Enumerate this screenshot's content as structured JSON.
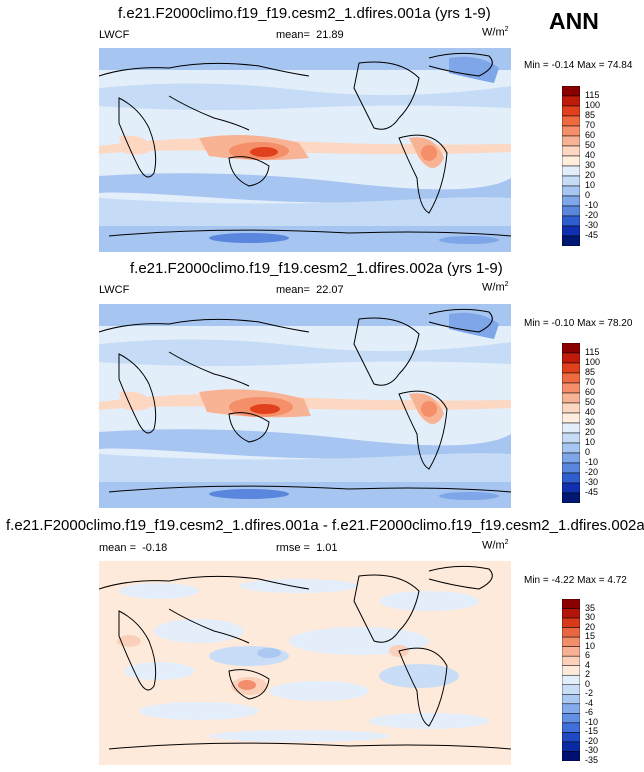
{
  "season": "ANN",
  "chart_data": [
    {
      "type": "heatmap",
      "title": "f.e21.F2000climo.f19_f19.cesm2_1.dfires.001a (yrs 1-9)",
      "variable": "LWCF",
      "stat_label": "mean=",
      "stat_value": "21.89",
      "units": "W/m",
      "units_sup": "2",
      "min_label": "Min =",
      "min_value": "-0.14",
      "max_label": "Max =",
      "max_value": "74.84",
      "colorbar_levels": [
        "115",
        "100",
        "85",
        "70",
        "60",
        "50",
        "40",
        "30",
        "20",
        "10",
        "0",
        "-10",
        "-20",
        "-30",
        "-45"
      ]
    },
    {
      "type": "heatmap",
      "title": "f.e21.F2000climo.f19_f19.cesm2_1.dfires.002a (yrs 1-9)",
      "variable": "LWCF",
      "stat_label": "mean=",
      "stat_value": "22.07",
      "units": "W/m",
      "units_sup": "2",
      "min_label": "Min =",
      "min_value": "-0.10",
      "max_label": "Max =",
      "max_value": "78.20",
      "colorbar_levels": [
        "115",
        "100",
        "85",
        "70",
        "60",
        "50",
        "40",
        "30",
        "20",
        "10",
        "0",
        "-10",
        "-20",
        "-30",
        "-45"
      ]
    },
    {
      "type": "heatmap",
      "title": "f.e21.F2000climo.f19_f19.cesm2_1.dfires.001a - f.e21.F2000climo.f19_f19.cesm2_1.dfires.002a",
      "stat_label": "mean =",
      "stat_value": "-0.18",
      "rmse_label": "rmse =",
      "rmse_value": "1.01",
      "units": "W/m",
      "units_sup": "2",
      "min_label": "Min =",
      "min_value": "-4.22",
      "max_label": "Max =",
      "max_value": "4.72",
      "colorbar_levels": [
        "35",
        "30",
        "20",
        "15",
        "10",
        "6",
        "4",
        "2",
        "0",
        "-2",
        "-4",
        "-6",
        "-10",
        "-15",
        "-20",
        "-30",
        "-35"
      ]
    }
  ],
  "colors": {
    "abs_scale": [
      "#8a0000",
      "#c01a0a",
      "#e0401c",
      "#ee6a40",
      "#f48f6a",
      "#f8b395",
      "#fcd7c2",
      "#ffeedd",
      "#e3eefb",
      "#c6dcf6",
      "#a6c5f0",
      "#7ea6e8",
      "#5a86de",
      "#2f5fcf",
      "#1030b0",
      "#001872"
    ],
    "diff_scale": [
      "#8a0000",
      "#b5140a",
      "#d63a1a",
      "#e96642",
      "#f28e6c",
      "#f8b194",
      "#fbd0ba",
      "#feeadb",
      "#e4eefb",
      "#c9ddf6",
      "#abc8f1",
      "#86abea",
      "#6290e2",
      "#3f6fd8",
      "#1f49c4",
      "#0a2aa3",
      "#001070"
    ]
  }
}
